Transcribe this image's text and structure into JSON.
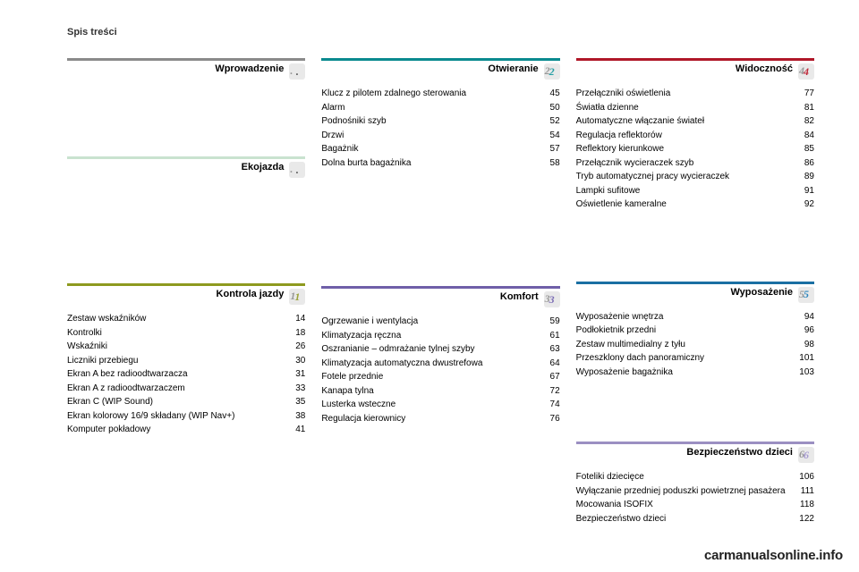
{
  "page_label": "Spis treści",
  "watermark": "carmanualsonline.info",
  "colors": {
    "wprowadzenie": "#8a8a8a",
    "ekojazda": "#c9e2cf",
    "kontrola": "#8e9a1f",
    "otwieranie": "#0a8a8f",
    "komfort": "#6f5fa8",
    "widocznosc": "#b01728",
    "wyposazenie": "#1a6fa3",
    "bezpieczenstwo": "#9b8fc2",
    "badge_bg": "#e9e9e9",
    "num_olive": "#9aa23a",
    "num_teal": "#28a0a5",
    "num_purple": "#7c6db5",
    "num_red": "#c0293a",
    "num_blue": "#2f86bd",
    "num_violet": "#a79bd1"
  },
  "col1": [
    {
      "key": "wprowadzenie",
      "title": "Wprowadzenie",
      "badge": ".",
      "badge_num_color": "#555555",
      "border_color": "#8a8a8a",
      "items": []
    },
    {
      "key": "ekojazda",
      "title": "Ekojazda",
      "badge": ".",
      "badge_num_color": "#555555",
      "border_color": "#c9e2cf",
      "items": []
    },
    {
      "key": "kontrola",
      "title": "Kontrola jazdy",
      "badge": "1",
      "badge_num_color": "#9aa23a",
      "border_color": "#8e9a1f",
      "items": [
        {
          "label": "Zestaw wskaźników",
          "page": "14"
        },
        {
          "label": "Kontrolki",
          "page": "18"
        },
        {
          "label": "Wskaźniki",
          "page": "26"
        },
        {
          "label": "Liczniki przebiegu",
          "page": "30"
        },
        {
          "label": "Ekran A bez radioodtwarzacza",
          "page": "31"
        },
        {
          "label": "Ekran A z radioodtwarzaczem",
          "page": "33"
        },
        {
          "label": "Ekran C (WIP Sound)",
          "page": "35"
        },
        {
          "label": "Ekran kolorowy 16/9 składany (WIP Nav+)",
          "page": "38"
        },
        {
          "label": "Komputer pokładowy",
          "page": "41"
        }
      ]
    }
  ],
  "col2": [
    {
      "key": "otwieranie",
      "title": "Otwieranie",
      "badge": "2",
      "badge_num_color": "#28a0a5",
      "border_color": "#0a8a8f",
      "items": [
        {
          "label": "Klucz z pilotem zdalnego sterowania",
          "page": "45"
        },
        {
          "label": "Alarm",
          "page": "50"
        },
        {
          "label": "Podnośniki szyb",
          "page": "52"
        },
        {
          "label": "Drzwi",
          "page": "54"
        },
        {
          "label": "Bagażnik",
          "page": "57"
        },
        {
          "label": "Dolna burta bagażnika",
          "page": "58"
        }
      ]
    },
    {
      "key": "komfort",
      "title": "Komfort",
      "badge": "3",
      "badge_num_color": "#7c6db5",
      "border_color": "#6f5fa8",
      "items": [
        {
          "label": "Ogrzewanie i wentylacja",
          "page": "59"
        },
        {
          "label": "Klimatyzacja ręczna",
          "page": "61"
        },
        {
          "label": "Oszranianie – odmrażanie tylnej szyby",
          "page": "63"
        },
        {
          "label": "Klimatyzacja automatyczna dwustrefowa",
          "page": "64"
        },
        {
          "label": "Fotele przednie",
          "page": "67"
        },
        {
          "label": "Kanapa tylna",
          "page": "72"
        },
        {
          "label": "Lusterka wsteczne",
          "page": "74"
        },
        {
          "label": "Regulacja kierownicy",
          "page": "76"
        }
      ]
    }
  ],
  "col3": [
    {
      "key": "widocznosc",
      "title": "Widoczność",
      "badge": "4",
      "badge_num_color": "#c0293a",
      "border_color": "#b01728",
      "items": [
        {
          "label": "Przełączniki oświetlenia",
          "page": "77"
        },
        {
          "label": "Światła dzienne",
          "page": "81"
        },
        {
          "label": "Automatyczne włączanie świateł",
          "page": "82"
        },
        {
          "label": "Regulacja reflektorów",
          "page": "84"
        },
        {
          "label": "Reflektory kierunkowe",
          "page": "85"
        },
        {
          "label": "Przełącznik wycieraczek szyb",
          "page": "86"
        },
        {
          "label": "Tryb automatycznej pracy wycieraczek",
          "page": "89"
        },
        {
          "label": "Lampki sufitowe",
          "page": "91"
        },
        {
          "label": "Oświetlenie kameralne",
          "page": "92"
        }
      ]
    },
    {
      "key": "wyposazenie",
      "title": "Wyposażenie",
      "badge": "5",
      "badge_num_color": "#2f86bd",
      "border_color": "#1a6fa3",
      "items": [
        {
          "label": "Wyposażenie wnętrza",
          "page": "94"
        },
        {
          "label": "Podłokietnik przedni",
          "page": "96"
        },
        {
          "label": "Zestaw multimedialny z tyłu",
          "page": "98"
        },
        {
          "label": "Przeszklony dach panoramiczny",
          "page": "101"
        },
        {
          "label": "Wyposażenie bagażnika",
          "page": "103"
        }
      ]
    },
    {
      "key": "bezpieczenstwo",
      "title": "Bezpieczeństwo dzieci",
      "badge": "6",
      "badge_num_color": "#a79bd1",
      "border_color": "#9b8fc2",
      "items": [
        {
          "label": "Foteliki dziecięce",
          "page": "106"
        },
        {
          "label": "Wyłączanie przedniej poduszki powietrznej pasażera",
          "page": "111"
        },
        {
          "label": "Mocowania ISOFIX",
          "page": "118"
        },
        {
          "label": "Bezpieczeństwo dzieci",
          "page": "122"
        }
      ]
    }
  ],
  "col1_spacers": {
    "after_wprowadzenie": 58,
    "after_ekojazda": 90
  },
  "col2_spacers": {
    "after_otwieranie": 100
  },
  "col3_spacers": {
    "after_widocznosc": 48,
    "after_wyposazenie": 40
  }
}
